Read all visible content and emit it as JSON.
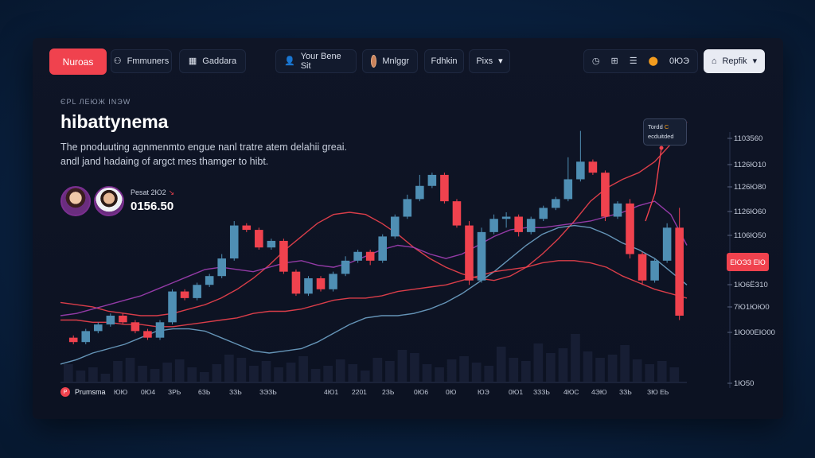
{
  "nav": {
    "primary_label": "Nuroas",
    "items": [
      {
        "icon": "user-group-icon",
        "glyph": "⚇",
        "label": "Fmmuners"
      },
      {
        "icon": "grid-icon",
        "glyph": "▦",
        "label": "Gaddara"
      },
      {
        "icon": "person-icon",
        "glyph": "👤",
        "label": "Your Bene Sit"
      },
      {
        "icon": "avatar-icon",
        "label": "Mnlggr"
      },
      {
        "label": "Fdhkin"
      },
      {
        "label": "Pixs",
        "glyph": "▾"
      }
    ],
    "tools": {
      "icons": [
        "clock-icon",
        "grid-small-icon",
        "list-icon",
        "location-icon"
      ],
      "glyphs": [
        "◷",
        "⊞",
        "☰",
        "⬤"
      ],
      "count": "0ЮЭ"
    },
    "account": {
      "icon": "bank-icon",
      "glyph": "⌂",
      "label": "Repfik",
      "chevron": "▾"
    }
  },
  "header": {
    "eyebrow": "ЄРL ЛЕЮЖ ІNЭW",
    "title": "hibattynema",
    "description": "The pnoduuting agnmenmto engue nanl tratre atem delahii greai. andl jand hadaing of argct mes thamger to hibt."
  },
  "ticker": {
    "label": "Pesat 2Ю2",
    "arrow": "↘",
    "price": "0156.50"
  },
  "tooltip": {
    "line1": "Tordd",
    "line1_hl": "C",
    "line2": "ecduitded"
  },
  "price_tag": "EЮЭЗ ЕЮ",
  "legend": {
    "icon": "P",
    "label": "Prumsma"
  },
  "colors": {
    "up": "#4f8fb4",
    "down": "#f0424e",
    "line_red": "#f0424e",
    "line_purple": "#a23fb5",
    "line_blue": "#6fa3c8",
    "accent": "#f0424e"
  },
  "chart_data": {
    "type": "candlestick",
    "y_ticks": [
      "1103560",
      "1126Ю10",
      "1126Ю80",
      "1126Ю60",
      "1106Ю50",
      "1Ю6ЁЗ10",
      "7Ю1ЮЮ0",
      "1Ю00ЕЮ00",
      "1Ю50"
    ],
    "x_ticks": [
      "ЮЮ",
      "0Ю4",
      "ЗРЬ",
      "6ЗЬ",
      "ЗЗЬ",
      "ЗЭЗЬ",
      "4Ю1",
      "2201",
      "2ЗЬ",
      "0Ю6",
      "0Ю",
      "ЮЭ",
      "0Ю1",
      "ЗЗЗЬ",
      "4ЮС",
      "4ЭЮ",
      "ЗЗЬ",
      "ЗЮ ЕЬ"
    ],
    "candles": [
      {
        "o": 20,
        "c": 18,
        "h": 21,
        "l": 17
      },
      {
        "o": 18,
        "c": 23,
        "h": 24,
        "l": 17
      },
      {
        "o": 23,
        "c": 26,
        "h": 27,
        "l": 22
      },
      {
        "o": 26,
        "c": 30,
        "h": 31,
        "l": 25
      },
      {
        "o": 30,
        "c": 27,
        "h": 31,
        "l": 26
      },
      {
        "o": 27,
        "c": 23,
        "h": 28,
        "l": 22
      },
      {
        "o": 23,
        "c": 20,
        "h": 24,
        "l": 19
      },
      {
        "o": 20,
        "c": 27,
        "h": 28,
        "l": 19
      },
      {
        "o": 27,
        "c": 41,
        "h": 42,
        "l": 26
      },
      {
        "o": 41,
        "c": 38,
        "h": 42,
        "l": 37
      },
      {
        "o": 38,
        "c": 44,
        "h": 45,
        "l": 37
      },
      {
        "o": 44,
        "c": 48,
        "h": 49,
        "l": 43
      },
      {
        "o": 48,
        "c": 56,
        "h": 58,
        "l": 47
      },
      {
        "o": 56,
        "c": 71,
        "h": 73,
        "l": 55
      },
      {
        "o": 71,
        "c": 69,
        "h": 72,
        "l": 68
      },
      {
        "o": 69,
        "c": 61,
        "h": 70,
        "l": 60
      },
      {
        "o": 61,
        "c": 64,
        "h": 65,
        "l": 60
      },
      {
        "o": 64,
        "c": 50,
        "h": 65,
        "l": 49
      },
      {
        "o": 50,
        "c": 40,
        "h": 51,
        "l": 39
      },
      {
        "o": 40,
        "c": 47,
        "h": 48,
        "l": 39
      },
      {
        "o": 47,
        "c": 42,
        "h": 48,
        "l": 41
      },
      {
        "o": 42,
        "c": 49,
        "h": 50,
        "l": 41
      },
      {
        "o": 49,
        "c": 55,
        "h": 57,
        "l": 48
      },
      {
        "o": 55,
        "c": 59,
        "h": 60,
        "l": 54
      },
      {
        "o": 59,
        "c": 55,
        "h": 60,
        "l": 53
      },
      {
        "o": 55,
        "c": 66,
        "h": 67,
        "l": 54
      },
      {
        "o": 66,
        "c": 75,
        "h": 76,
        "l": 65
      },
      {
        "o": 75,
        "c": 83,
        "h": 85,
        "l": 74
      },
      {
        "o": 83,
        "c": 89,
        "h": 94,
        "l": 82
      },
      {
        "o": 89,
        "c": 94,
        "h": 95,
        "l": 88
      },
      {
        "o": 94,
        "c": 82,
        "h": 95,
        "l": 81
      },
      {
        "o": 82,
        "c": 71,
        "h": 83,
        "l": 70
      },
      {
        "o": 71,
        "c": 46,
        "h": 73,
        "l": 44
      },
      {
        "o": 46,
        "c": 68,
        "h": 70,
        "l": 45
      },
      {
        "o": 68,
        "c": 74,
        "h": 76,
        "l": 67
      },
      {
        "o": 74,
        "c": 75,
        "h": 77,
        "l": 70
      },
      {
        "o": 75,
        "c": 68,
        "h": 76,
        "l": 66
      },
      {
        "o": 68,
        "c": 74,
        "h": 75,
        "l": 67
      },
      {
        "o": 74,
        "c": 79,
        "h": 80,
        "l": 73
      },
      {
        "o": 79,
        "c": 83,
        "h": 84,
        "l": 78
      },
      {
        "o": 83,
        "c": 92,
        "h": 102,
        "l": 82
      },
      {
        "o": 92,
        "c": 100,
        "h": 114,
        "l": 91
      },
      {
        "o": 100,
        "c": 95,
        "h": 101,
        "l": 94
      },
      {
        "o": 95,
        "c": 75,
        "h": 96,
        "l": 73
      },
      {
        "o": 75,
        "c": 81,
        "h": 82,
        "l": 74
      },
      {
        "o": 81,
        "c": 58,
        "h": 83,
        "l": 56
      },
      {
        "o": 58,
        "c": 46,
        "h": 59,
        "l": 44
      },
      {
        "o": 46,
        "c": 55,
        "h": 56,
        "l": 45
      },
      {
        "o": 55,
        "c": 70,
        "h": 72,
        "l": 54
      },
      {
        "o": 70,
        "c": 30,
        "h": 79,
        "l": 28
      }
    ],
    "lines": [
      {
        "color_key": "line_red",
        "values": [
          36,
          35,
          34,
          32,
          31,
          30,
          30,
          31,
          33,
          35,
          38,
          42,
          47,
          53,
          60,
          66,
          72,
          76,
          77,
          76,
          72,
          67,
          61,
          56,
          52,
          49,
          47,
          46,
          48,
          52,
          58,
          65,
          73,
          82,
          88,
          92,
          95,
          100,
          108,
          118
        ]
      },
      {
        "color_key": "line_purple",
        "values": [
          30,
          31,
          33,
          35,
          37,
          39,
          42,
          45,
          48,
          51,
          52,
          51,
          50,
          52,
          54,
          55,
          53,
          52,
          54,
          57,
          60,
          62,
          61,
          58,
          56,
          58,
          62,
          66,
          69,
          70,
          70,
          71,
          72,
          73,
          75,
          77,
          80,
          82,
          76,
          62
        ]
      },
      {
        "color_key": "line_blue",
        "values": [
          8,
          10,
          13,
          15,
          17,
          20,
          23,
          24,
          24,
          23,
          20,
          17,
          14,
          13,
          14,
          15,
          18,
          22,
          26,
          29,
          30,
          30,
          31,
          33,
          36,
          40,
          45,
          50,
          56,
          62,
          67,
          70,
          71,
          70,
          67,
          63,
          60,
          56,
          50,
          44
        ]
      },
      {
        "color_key": "line_red",
        "values": [
          28,
          28,
          27,
          27,
          26,
          26,
          25,
          25,
          26,
          27,
          28,
          29,
          31,
          32,
          32,
          33,
          35,
          37,
          38,
          38,
          39,
          41,
          42,
          43,
          44,
          46,
          48,
          50,
          51,
          52,
          54,
          55,
          55,
          54,
          52,
          48,
          45,
          42,
          40,
          38
        ]
      }
    ],
    "volume": [
      22,
      14,
      18,
      10,
      26,
      30,
      20,
      16,
      24,
      28,
      18,
      12,
      22,
      34,
      30,
      20,
      26,
      18,
      24,
      32,
      16,
      20,
      28,
      22,
      14,
      30,
      26,
      40,
      36,
      22,
      18,
      28,
      32,
      24,
      20,
      44,
      30,
      26,
      48,
      36,
      42,
      60,
      38,
      30,
      34,
      46,
      28,
      22,
      26,
      18
    ],
    "ylim": [
      0,
      120
    ]
  }
}
